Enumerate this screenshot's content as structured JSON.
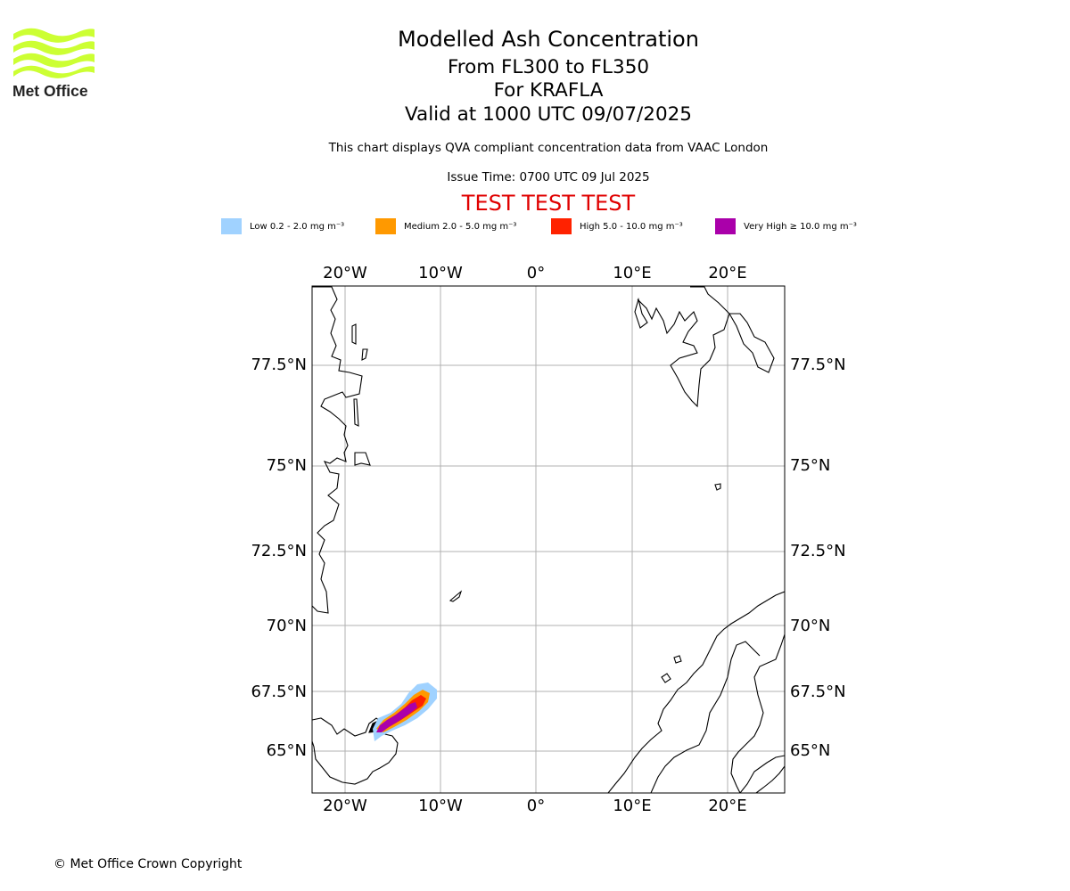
{
  "header": {
    "title": "Modelled Ash Concentration",
    "levels": "From FL300 to FL350",
    "volcano": "For KRAFLA",
    "valid": "Valid at 1000 UTC 09/07/2025",
    "subtitle": "This chart displays QVA compliant concentration data from VAAC London",
    "issue": "Issue Time: 0700 UTC 09 Jul 2025",
    "test_banner": "TEST TEST TEST",
    "test_color": "#e00000"
  },
  "logo": {
    "text": "Met Office",
    "icon": "met-office-waves-logo",
    "color": "#ccff33"
  },
  "legend": [
    {
      "label": "Low 0.2 - 2.0 mg m⁻³",
      "color": "#a0d2ff"
    },
    {
      "label": "Medium 2.0 - 5.0 mg m⁻³",
      "color": "#ff9900"
    },
    {
      "label": "High 5.0 - 10.0 mg m⁻³",
      "color": "#ff2200"
    },
    {
      "label": "Very High ≥ 10.0 mg m⁻³",
      "color": "#aa00aa"
    }
  ],
  "map": {
    "lon_labels": [
      "20°W",
      "10°W",
      "0°",
      "10°E",
      "20°E"
    ],
    "lat_labels": [
      "77.5°N",
      "75°N",
      "72.5°N",
      "70°N",
      "67.5°N",
      "65°N"
    ],
    "grid": true
  },
  "footer": {
    "copyright": "© Met Office Crown Copyright"
  }
}
